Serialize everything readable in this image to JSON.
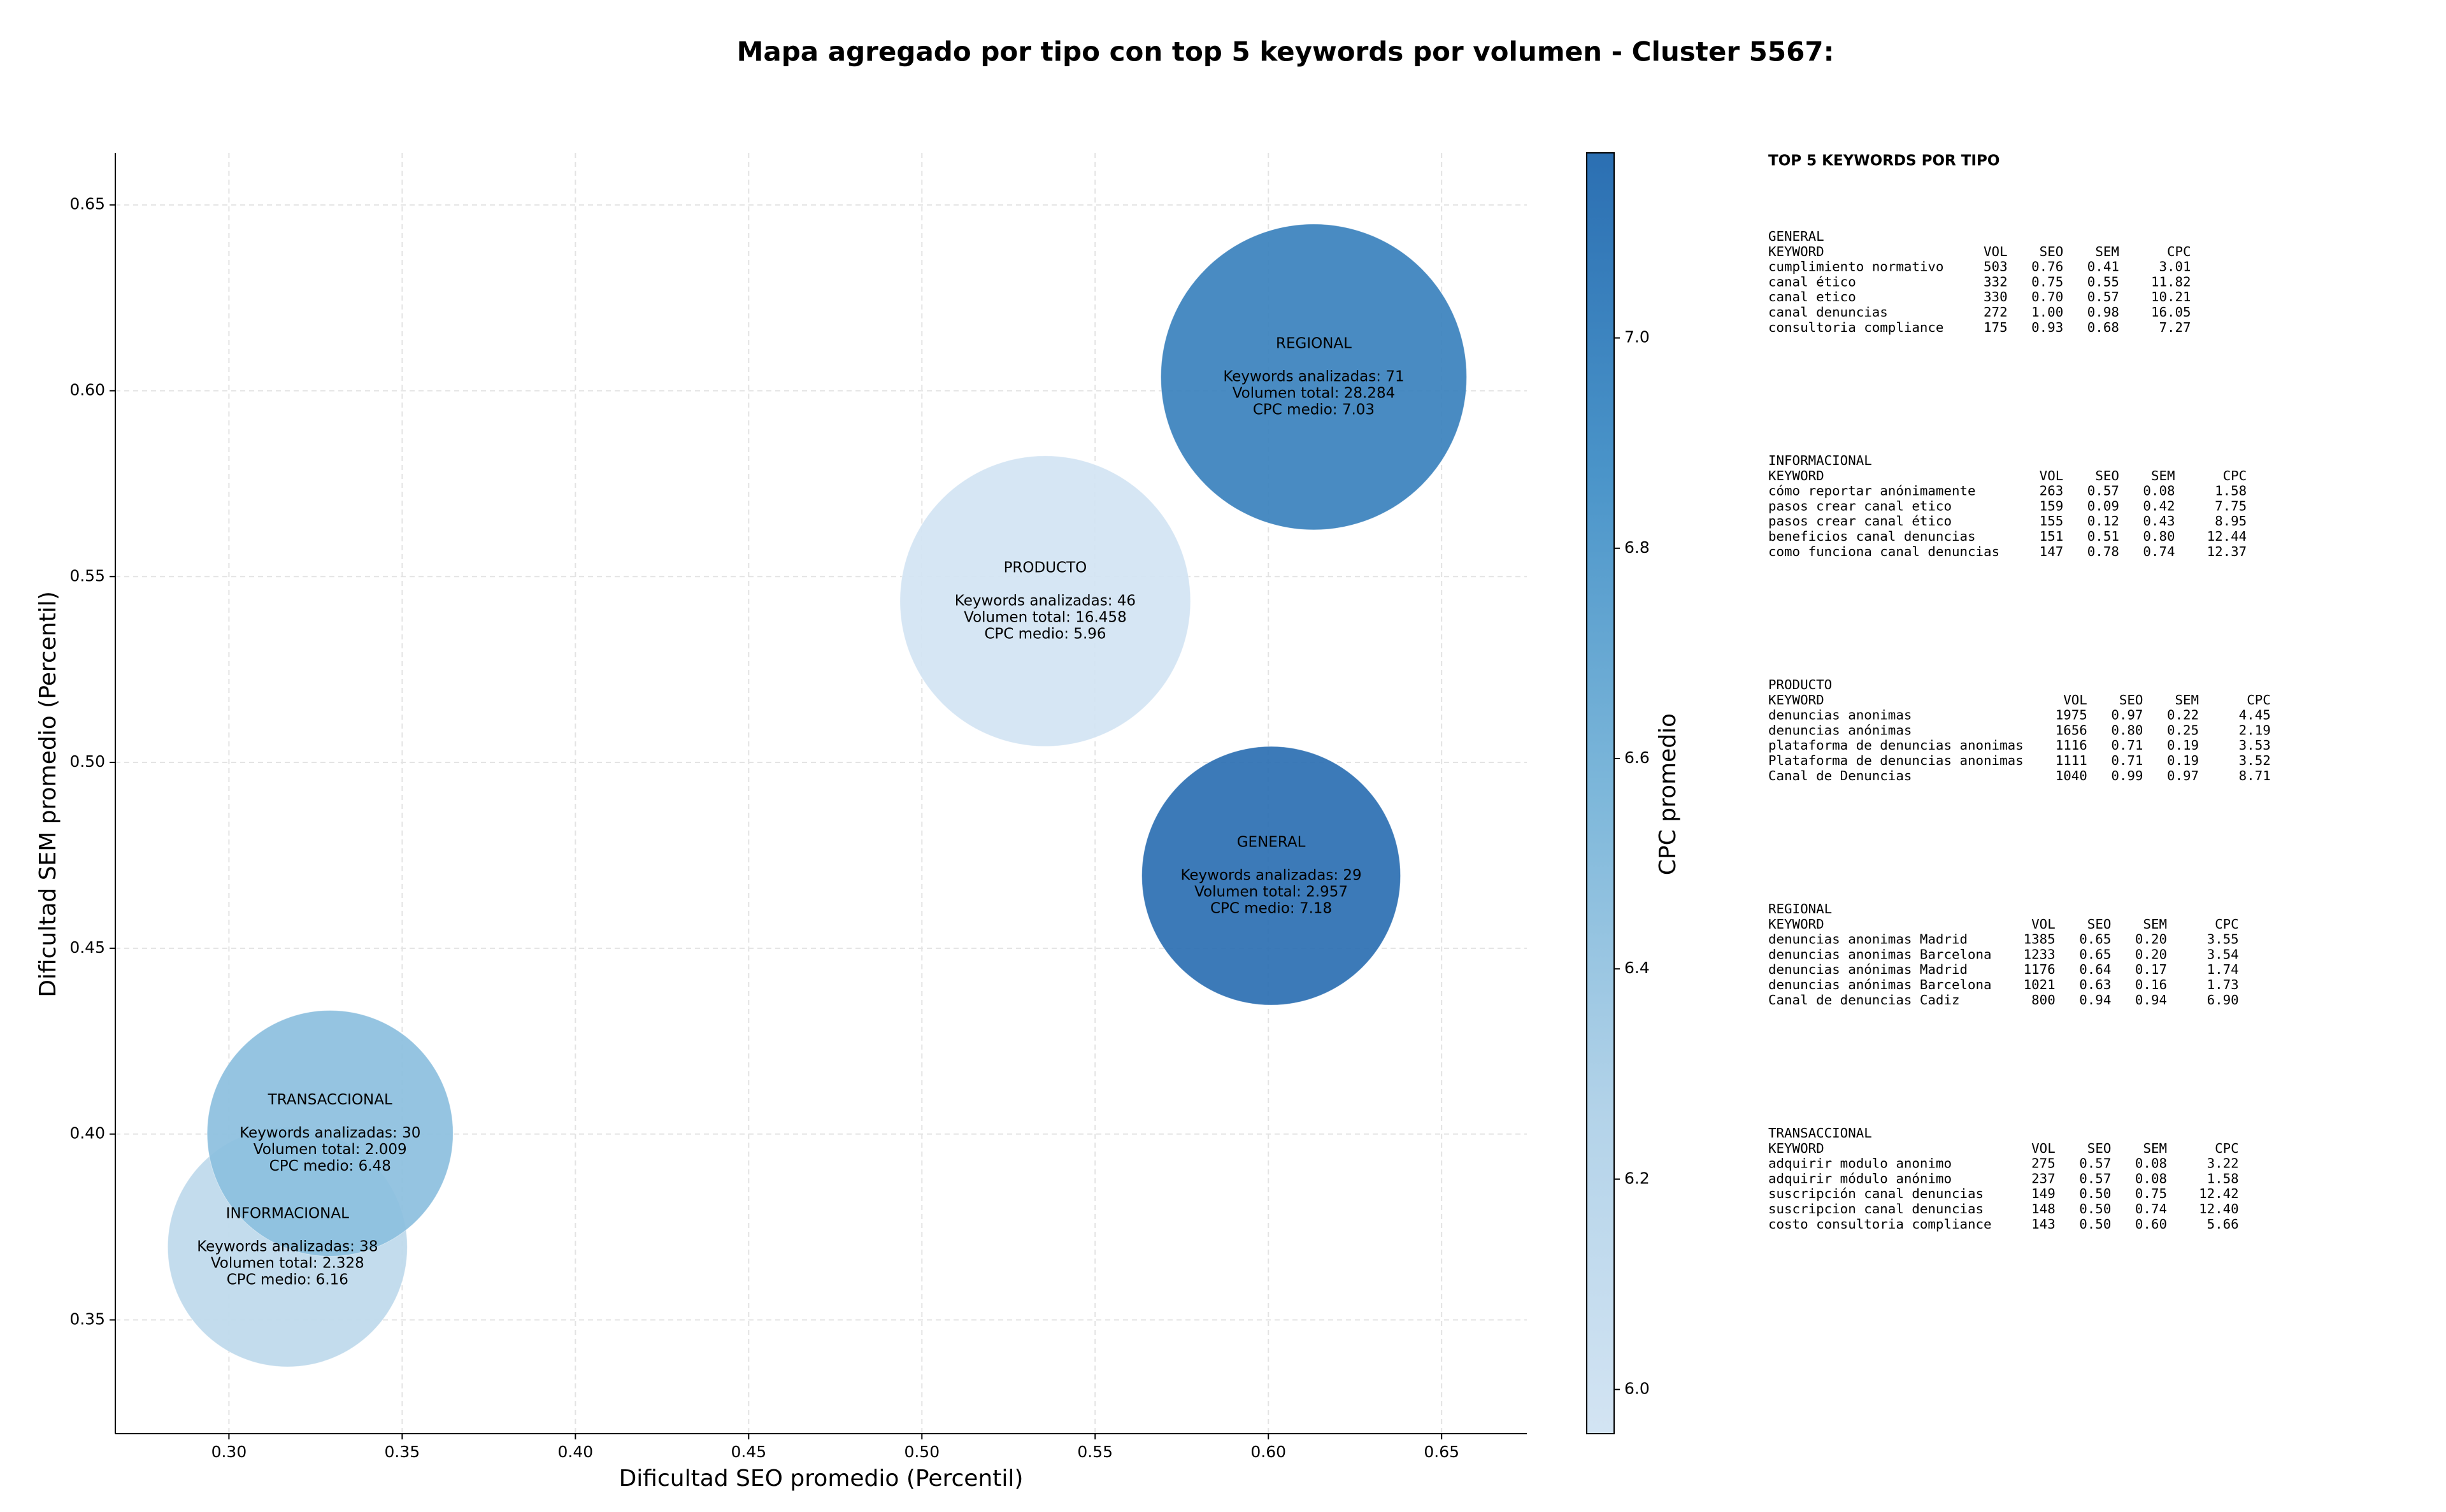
{
  "chart_data": {
    "type": "bubble",
    "title": "Mapa agregado por tipo con top 5 keywords por volumen - Cluster 5567:",
    "xlabel": "Dificultad SEO promedio (Percentil)",
    "ylabel": "Dificultad SEM promedio (Percentil)",
    "categories": [
      "GENERAL",
      "INFORMACIONAL",
      "PRODUCTO",
      "REGIONAL",
      "TRANSACCIONAL"
    ],
    "x": [
      0.6008,
      0.3169,
      0.5356,
      0.6131,
      0.3292
    ],
    "y": [
      0.4695,
      0.3696,
      0.5434,
      0.6037,
      0.4002
    ],
    "cpc": [
      7.18,
      6.16,
      5.96,
      7.03,
      6.48
    ],
    "annotations": [
      [
        "Keywords analizadas: 29",
        "Volumen total: 2.957",
        "CPC medio: 7.18"
      ],
      [
        "Keywords analizadas: 38",
        "Volumen total: 2.328",
        "CPC medio: 6.16"
      ],
      [
        "Keywords analizadas: 46",
        "Volumen total: 16.458",
        "CPC medio: 5.96"
      ],
      [
        "Keywords analizadas: 71",
        "Volumen total: 28.284",
        "CPC medio: 7.03"
      ],
      [
        "Keywords analizadas: 30",
        "Volumen total: 2.009",
        "CPC medio: 6.48"
      ]
    ],
    "xlim": [
      0.2672,
      0.6746
    ],
    "ylim": [
      0.3194,
      0.664
    ],
    "xticks": [
      {
        "value": 0.3,
        "label": "0.30"
      },
      0.35,
      {
        "value": 0.4,
        "label": "0.40"
      },
      0.45,
      {
        "value": 0.5,
        "label": "0.50"
      },
      0.55,
      {
        "value": 0.6,
        "label": "0.60"
      },
      0.65
    ],
    "yticks": [
      0.35,
      {
        "value": 0.4,
        "label": "0.40"
      },
      0.45,
      {
        "value": 0.5,
        "label": "0.50"
      },
      0.55,
      {
        "value": 0.6,
        "label": "0.60"
      },
      0.65
    ],
    "grid": true,
    "colorbar": {
      "label": "CPC promedio",
      "lim": [
        5.958,
        7.176
      ],
      "ticks": [
        {
          "value": 6,
          "label": "6.0"
        },
        6.2,
        6.4,
        6.6,
        6.8,
        {
          "value": 7,
          "label": "7.0"
        }
      ],
      "colormap": [
        "#d3e4f3",
        "#b3d3e9",
        "#7db7da",
        "#4a94c9",
        "#2b6fb2"
      ]
    }
  },
  "panel": {
    "title": "TOP 5 KEYWORDS POR TIPO",
    "groups": [
      {
        "name": "GENERAL",
        "header": [
          "KEYWORD",
          "VOL",
          "SEO",
          "SEM",
          "CPC"
        ],
        "rows": [
          [
            "cumplimiento normativo",
            "503",
            "0.76",
            "0.41",
            "3.01"
          ],
          [
            "canal ético",
            "332",
            "0.75",
            "0.55",
            "11.82"
          ],
          [
            "canal etico",
            "330",
            "0.70",
            "0.57",
            "10.21"
          ],
          [
            "canal denuncias",
            "272",
            "1.00",
            "0.98",
            "16.05"
          ],
          [
            "consultoria compliance",
            "175",
            "0.93",
            "0.68",
            "7.27"
          ]
        ]
      },
      {
        "name": "INFORMACIONAL",
        "header": [
          "KEYWORD",
          "VOL",
          "SEO",
          "SEM",
          "CPC"
        ],
        "rows": [
          [
            "cómo reportar anónimamente",
            "263",
            "0.57",
            "0.08",
            "1.58"
          ],
          [
            "pasos crear canal etico",
            "159",
            "0.09",
            "0.42",
            "7.75"
          ],
          [
            "pasos crear canal ético",
            "155",
            "0.12",
            "0.43",
            "8.95"
          ],
          [
            "beneficios canal denuncias",
            "151",
            "0.51",
            "0.80",
            "12.44"
          ],
          [
            "como funciona canal denuncias",
            "147",
            "0.78",
            "0.74",
            "12.37"
          ]
        ]
      },
      {
        "name": "PRODUCTO",
        "header": [
          "KEYWORD",
          "VOL",
          "SEO",
          "SEM",
          "CPC"
        ],
        "rows": [
          [
            "denuncias anonimas",
            "1975",
            "0.97",
            "0.22",
            "4.45"
          ],
          [
            "denuncias anónimas",
            "1656",
            "0.80",
            "0.25",
            "2.19"
          ],
          [
            "plataforma de denuncias anonimas",
            "1116",
            "0.71",
            "0.19",
            "3.53"
          ],
          [
            "Plataforma de denuncias anonimas",
            "1111",
            "0.71",
            "0.19",
            "3.52"
          ],
          [
            "Canal de Denuncias",
            "1040",
            "0.99",
            "0.97",
            "8.71"
          ]
        ]
      },
      {
        "name": "REGIONAL",
        "header": [
          "KEYWORD",
          "VOL",
          "SEO",
          "SEM",
          "CPC"
        ],
        "rows": [
          [
            "denuncias anonimas Madrid",
            "1385",
            "0.65",
            "0.20",
            "3.55"
          ],
          [
            "denuncias anonimas Barcelona",
            "1233",
            "0.65",
            "0.20",
            "3.54"
          ],
          [
            "denuncias anónimas Madrid",
            "1176",
            "0.64",
            "0.17",
            "1.74"
          ],
          [
            "denuncias anónimas Barcelona",
            "1021",
            "0.63",
            "0.16",
            "1.73"
          ],
          [
            "Canal de denuncias Cadiz",
            "800",
            "0.94",
            "0.94",
            "6.90"
          ]
        ]
      },
      {
        "name": "TRANSACCIONAL",
        "header": [
          "KEYWORD",
          "VOL",
          "SEO",
          "SEM",
          "CPC"
        ],
        "rows": [
          [
            "adquirir modulo anonimo",
            "275",
            "0.57",
            "0.08",
            "3.22"
          ],
          [
            "adquirir módulo anónimo",
            "237",
            "0.57",
            "0.08",
            "1.58"
          ],
          [
            "suscripción canal denuncias",
            "149",
            "0.50",
            "0.75",
            "12.42"
          ],
          [
            "suscripcion canal denuncias",
            "148",
            "0.50",
            "0.74",
            "12.40"
          ],
          [
            "costo consultoria compliance",
            "143",
            "0.50",
            "0.60",
            "5.66"
          ]
        ]
      }
    ]
  }
}
